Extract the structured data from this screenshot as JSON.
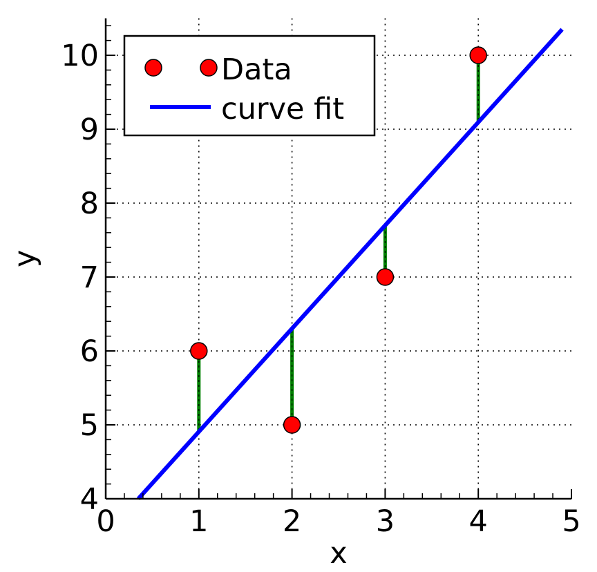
{
  "chart_data": {
    "type": "scatter",
    "title": "",
    "xlabel": "x",
    "ylabel": "y",
    "xlim": [
      0,
      5
    ],
    "ylim": [
      4,
      10.5
    ],
    "xticks": [
      0,
      1,
      2,
      3,
      4,
      5
    ],
    "yticks": [
      4,
      5,
      6,
      7,
      8,
      9,
      10
    ],
    "grid": true,
    "legend_position": "top-left",
    "series": [
      {
        "name": "Data",
        "kind": "scatter",
        "color": "#ff0000",
        "x": [
          1,
          2,
          3,
          4
        ],
        "y": [
          6,
          5,
          7,
          10
        ]
      },
      {
        "name": "curve fit",
        "kind": "line",
        "color": "#0000ff",
        "x": [
          0.35,
          4.9
        ],
        "y": [
          4.0,
          10.35
        ]
      }
    ],
    "residuals": {
      "color": "#008000",
      "x": [
        1,
        2,
        3,
        4
      ],
      "y_from": [
        6,
        5,
        7,
        10
      ],
      "y_to": [
        4.9,
        6.3,
        7.7,
        9.1
      ]
    }
  }
}
